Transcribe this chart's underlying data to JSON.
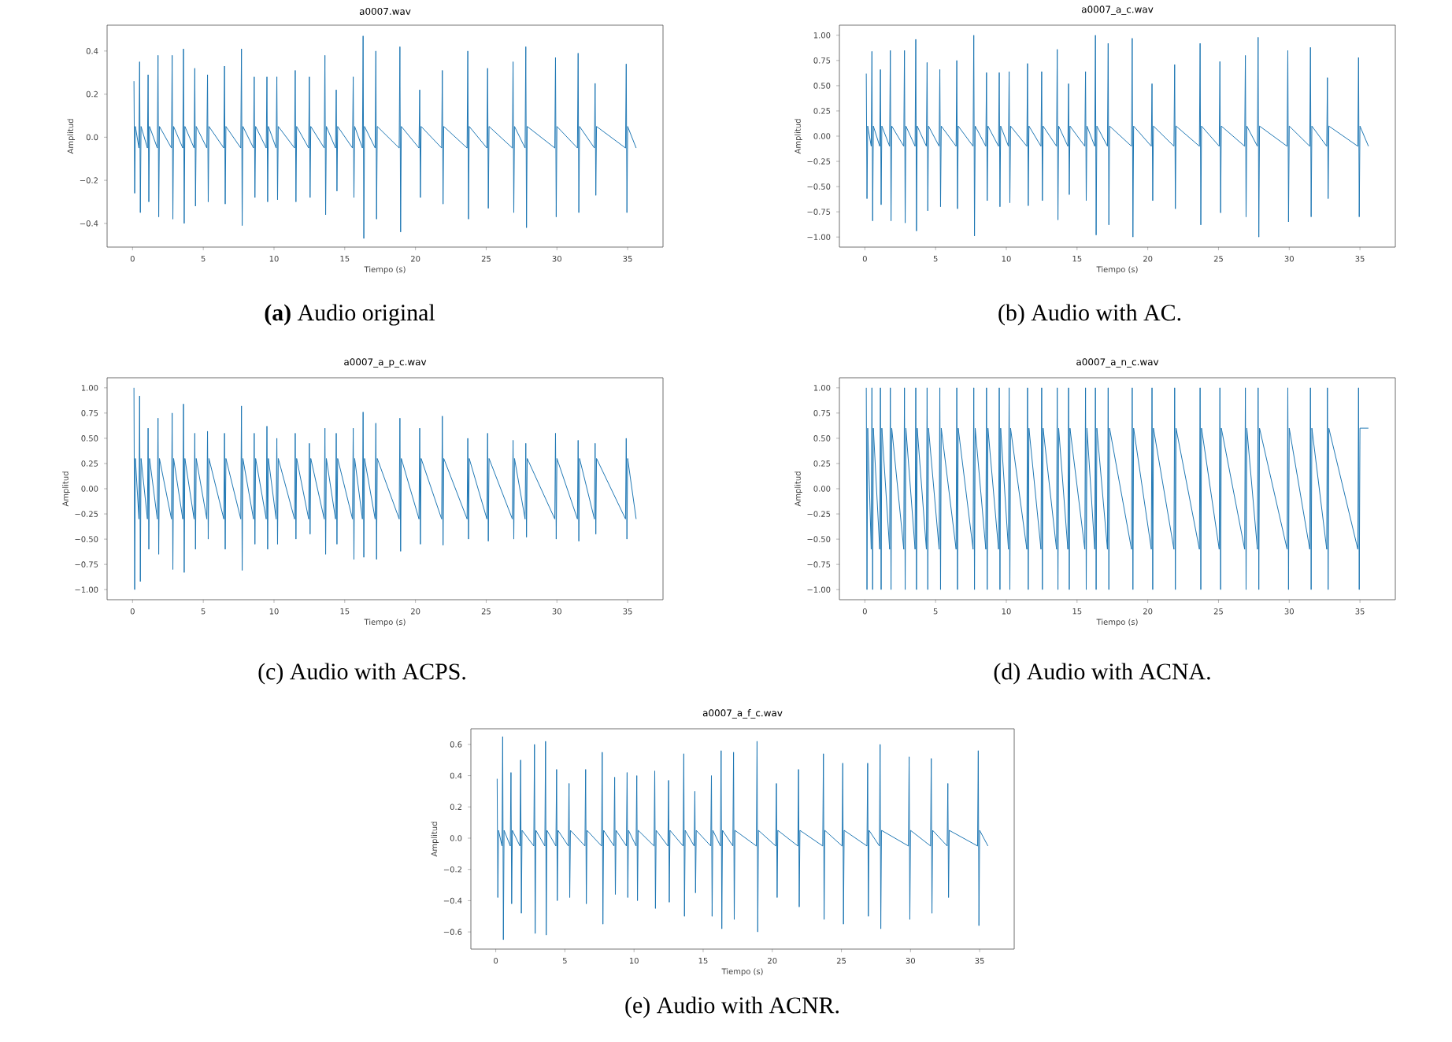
{
  "chart_data": [
    {
      "type": "line",
      "title": "a0007.wav",
      "xlabel": "Tiempo (s)",
      "ylabel": "Amplitud",
      "annotations": [
        "**(a)** Audio original"
      ],
      "xlim": [
        -1.8,
        37.5
      ],
      "ylim": [
        -0.51,
        0.52
      ],
      "xticks": [
        0,
        5,
        10,
        15,
        20,
        25,
        30,
        35
      ],
      "yticks": [
        {
          "value": -0.4,
          "label": "−0.4"
        },
        {
          "value": -0.2,
          "label": "−0.2"
        },
        {
          "value": 0,
          "label": "0.0"
        },
        {
          "value": 0.2,
          "label": "0.2"
        },
        {
          "value": 0.4,
          "label": "0.4"
        }
      ],
      "x": [
        0.1,
        0.15,
        0.2,
        0.45,
        0.5,
        0.55,
        0.6,
        1.05,
        1.1,
        1.15,
        1.2,
        1.75,
        1.8,
        1.85,
        1.9,
        2.75,
        2.8,
        2.85,
        2.9,
        3.55,
        3.6,
        3.65,
        3.7,
        4.35,
        4.4,
        4.45,
        4.5,
        5.25,
        5.3,
        5.35,
        5.4,
        6.45,
        6.5,
        6.55,
        6.6,
        7.65,
        7.7,
        7.75,
        7.8,
        8.55,
        8.6,
        8.65,
        8.7,
        9.45,
        9.5,
        9.55,
        9.6,
        10.15,
        10.2,
        10.25,
        10.3,
        11.45,
        11.5,
        11.55,
        11.6,
        12.45,
        12.5,
        12.55,
        12.6,
        13.55,
        13.6,
        13.65,
        13.7,
        14.35,
        14.4,
        14.45,
        14.5,
        15.55,
        15.6,
        15.65,
        15.7,
        16.25,
        16.3,
        16.35,
        16.4,
        17.15,
        17.2,
        17.25,
        17.3,
        18.85,
        18.9,
        18.95,
        19.0,
        20.25,
        20.3,
        20.35,
        20.4,
        21.85,
        21.9,
        21.95,
        22.0,
        23.65,
        23.7,
        23.75,
        23.8,
        25.05,
        25.1,
        25.15,
        25.2,
        26.85,
        26.9,
        26.95,
        27.0,
        27.75,
        27.8,
        27.85,
        27.9,
        29.85,
        29.9,
        29.95,
        30.0,
        31.45,
        31.5,
        31.55,
        31.6,
        32.65,
        32.7,
        32.75,
        32.8,
        34.85,
        34.9,
        34.95,
        35.0,
        35.6
      ],
      "series": [
        {
          "color": "#1f77b4",
          "values": [
            0.26,
            -0.26,
            0.05,
            -0.05,
            0.35,
            -0.35,
            0.05,
            -0.05,
            0.29,
            -0.3,
            0.05,
            -0.05,
            0.38,
            -0.37,
            0.05,
            -0.05,
            0.38,
            -0.38,
            0.05,
            -0.05,
            0.41,
            -0.4,
            0.05,
            -0.05,
            0.32,
            -0.32,
            0.05,
            -0.05,
            0.29,
            -0.3,
            0.05,
            -0.05,
            0.33,
            -0.31,
            0.05,
            -0.05,
            0.41,
            -0.41,
            0.05,
            -0.05,
            0.28,
            -0.28,
            0.05,
            -0.05,
            0.28,
            -0.3,
            0.05,
            -0.05,
            0.28,
            -0.29,
            0.05,
            -0.05,
            0.31,
            -0.3,
            0.05,
            -0.05,
            0.28,
            -0.28,
            0.05,
            -0.05,
            0.38,
            -0.36,
            0.05,
            -0.05,
            0.22,
            -0.25,
            0.05,
            -0.05,
            0.28,
            -0.28,
            0.05,
            -0.05,
            0.47,
            -0.47,
            0.05,
            -0.05,
            0.4,
            -0.38,
            0.05,
            -0.05,
            0.42,
            -0.44,
            0.05,
            -0.05,
            0.22,
            -0.28,
            0.05,
            -0.05,
            0.31,
            -0.31,
            0.05,
            -0.05,
            0.4,
            -0.38,
            0.05,
            -0.05,
            0.32,
            -0.33,
            0.05,
            -0.05,
            0.35,
            -0.35,
            0.05,
            -0.05,
            0.42,
            -0.42,
            0.05,
            -0.05,
            0.37,
            -0.37,
            0.05,
            -0.05,
            0.39,
            -0.35,
            0.05,
            -0.05,
            0.25,
            -0.27,
            0.05,
            -0.05,
            0.34,
            -0.35,
            0.05,
            -0.05
          ]
        }
      ]
    },
    {
      "type": "line",
      "title": "a0007_a_c.wav",
      "xlabel": "Tiempo (s)",
      "ylabel": "Amplitud",
      "annotations": [
        "(b) Audio with AC."
      ],
      "xlim": [
        -1.8,
        37.5
      ],
      "ylim": [
        -1.1,
        1.1
      ],
      "xticks": [
        0,
        5,
        10,
        15,
        20,
        25,
        30,
        35
      ],
      "yticks": [
        {
          "value": -1,
          "label": "−1.00"
        },
        {
          "value": -0.75,
          "label": "−0.75"
        },
        {
          "value": -0.5,
          "label": "−0.50"
        },
        {
          "value": -0.25,
          "label": "−0.25"
        },
        {
          "value": 0,
          "label": "0.00"
        },
        {
          "value": 0.25,
          "label": "0.25"
        },
        {
          "value": 0.5,
          "label": "0.50"
        },
        {
          "value": 0.75,
          "label": "0.75"
        },
        {
          "value": 1,
          "label": "1.00"
        }
      ],
      "x": [
        0.1,
        0.15,
        0.2,
        0.45,
        0.5,
        0.55,
        0.6,
        1.05,
        1.1,
        1.15,
        1.2,
        1.75,
        1.8,
        1.85,
        1.9,
        2.75,
        2.8,
        2.85,
        2.9,
        3.55,
        3.6,
        3.65,
        3.7,
        4.35,
        4.4,
        4.45,
        4.5,
        5.25,
        5.3,
        5.35,
        5.4,
        6.45,
        6.5,
        6.55,
        6.6,
        7.65,
        7.7,
        7.75,
        7.8,
        8.55,
        8.6,
        8.65,
        8.7,
        9.45,
        9.5,
        9.55,
        9.6,
        10.15,
        10.2,
        10.25,
        10.3,
        11.45,
        11.5,
        11.55,
        11.6,
        12.45,
        12.5,
        12.55,
        12.6,
        13.55,
        13.6,
        13.65,
        13.7,
        14.35,
        14.4,
        14.45,
        14.5,
        15.55,
        15.6,
        15.65,
        15.7,
        16.25,
        16.3,
        16.35,
        16.4,
        17.15,
        17.2,
        17.25,
        17.3,
        18.85,
        18.9,
        18.95,
        19.0,
        20.25,
        20.3,
        20.35,
        20.4,
        21.85,
        21.9,
        21.95,
        22.0,
        23.65,
        23.7,
        23.75,
        23.8,
        25.05,
        25.1,
        25.15,
        25.2,
        26.85,
        26.9,
        26.95,
        27.0,
        27.75,
        27.8,
        27.85,
        27.9,
        29.85,
        29.9,
        29.95,
        30.0,
        31.45,
        31.5,
        31.55,
        31.6,
        32.65,
        32.7,
        32.75,
        32.8,
        34.85,
        34.9,
        34.95,
        35.0,
        35.6
      ],
      "series": [
        {
          "color": "#1f77b4",
          "values": [
            0.62,
            -0.62,
            0.1,
            -0.1,
            0.84,
            -0.84,
            0.1,
            -0.1,
            0.66,
            -0.68,
            0.1,
            -0.1,
            0.85,
            -0.84,
            0.1,
            -0.1,
            0.85,
            -0.86,
            0.1,
            -0.1,
            0.96,
            -0.94,
            0.1,
            -0.1,
            0.73,
            -0.74,
            0.1,
            -0.1,
            0.66,
            -0.7,
            0.1,
            -0.1,
            0.75,
            -0.72,
            0.1,
            -0.1,
            1.0,
            -0.99,
            0.1,
            -0.1,
            0.63,
            -0.64,
            0.1,
            -0.1,
            0.63,
            -0.7,
            0.1,
            -0.1,
            0.64,
            -0.66,
            0.1,
            -0.1,
            0.72,
            -0.69,
            0.1,
            -0.1,
            0.64,
            -0.64,
            0.1,
            -0.1,
            0.86,
            -0.83,
            0.1,
            -0.1,
            0.52,
            -0.58,
            0.1,
            -0.1,
            0.64,
            -0.64,
            0.1,
            -0.1,
            1.0,
            -0.98,
            0.1,
            -0.1,
            0.92,
            -0.88,
            0.1,
            -0.1,
            0.97,
            -1.0,
            0.1,
            -0.1,
            0.52,
            -0.64,
            0.1,
            -0.1,
            0.71,
            -0.72,
            0.1,
            -0.1,
            0.92,
            -0.88,
            0.1,
            -0.1,
            0.74,
            -0.76,
            0.1,
            -0.1,
            0.8,
            -0.8,
            0.1,
            -0.1,
            0.98,
            -1.0,
            0.1,
            -0.1,
            0.85,
            -0.85,
            0.1,
            -0.1,
            0.88,
            -0.8,
            0.1,
            -0.1,
            0.58,
            -0.62,
            0.1,
            -0.1,
            0.78,
            -0.8,
            0.1,
            -0.1
          ]
        }
      ]
    },
    {
      "type": "line",
      "title": "a0007_a_p_c.wav",
      "xlabel": "Tiempo (s)",
      "ylabel": "Amplitud",
      "annotations": [
        "(c) Audio with ACPS."
      ],
      "xlim": [
        -1.8,
        37.5
      ],
      "ylim": [
        -1.1,
        1.1
      ],
      "xticks": [
        0,
        5,
        10,
        15,
        20,
        25,
        30,
        35
      ],
      "yticks": [
        {
          "value": -1,
          "label": "−1.00"
        },
        {
          "value": -0.75,
          "label": "−0.75"
        },
        {
          "value": -0.5,
          "label": "−0.50"
        },
        {
          "value": -0.25,
          "label": "−0.25"
        },
        {
          "value": 0,
          "label": "0.00"
        },
        {
          "value": 0.25,
          "label": "0.25"
        },
        {
          "value": 0.5,
          "label": "0.50"
        },
        {
          "value": 0.75,
          "label": "0.75"
        },
        {
          "value": 1,
          "label": "1.00"
        }
      ],
      "x": [
        0.1,
        0.15,
        0.2,
        0.45,
        0.5,
        0.55,
        0.6,
        1.05,
        1.1,
        1.15,
        1.2,
        1.75,
        1.8,
        1.85,
        1.9,
        2.75,
        2.8,
        2.85,
        2.9,
        3.55,
        3.6,
        3.65,
        3.7,
        4.35,
        4.4,
        4.45,
        4.5,
        5.25,
        5.3,
        5.35,
        5.4,
        6.45,
        6.5,
        6.55,
        6.6,
        7.65,
        7.7,
        7.75,
        7.8,
        8.55,
        8.6,
        8.65,
        8.7,
        9.45,
        9.5,
        9.55,
        9.6,
        10.15,
        10.2,
        10.25,
        10.3,
        11.45,
        11.5,
        11.55,
        11.6,
        12.45,
        12.5,
        12.55,
        12.6,
        13.55,
        13.6,
        13.65,
        13.7,
        14.35,
        14.4,
        14.45,
        14.5,
        15.55,
        15.6,
        15.65,
        15.7,
        16.25,
        16.3,
        16.35,
        16.4,
        17.15,
        17.2,
        17.25,
        17.3,
        18.85,
        18.9,
        18.95,
        19.0,
        20.25,
        20.3,
        20.35,
        20.4,
        21.85,
        21.9,
        21.95,
        22.0,
        23.65,
        23.7,
        23.75,
        23.8,
        25.05,
        25.1,
        25.15,
        25.2,
        26.85,
        26.9,
        26.95,
        27.0,
        27.75,
        27.8,
        27.85,
        27.9,
        29.85,
        29.9,
        29.95,
        30.0,
        31.45,
        31.5,
        31.55,
        31.6,
        32.65,
        32.7,
        32.75,
        32.8,
        34.85,
        34.9,
        34.95,
        35.0,
        35.6
      ],
      "series": [
        {
          "color": "#1f77b4",
          "values": [
            1.0,
            -1.0,
            0.3,
            -0.3,
            0.92,
            -0.92,
            0.3,
            -0.3,
            0.6,
            -0.6,
            0.3,
            -0.3,
            0.7,
            -0.65,
            0.3,
            -0.3,
            0.75,
            -0.8,
            0.3,
            -0.3,
            0.84,
            -0.83,
            0.3,
            -0.3,
            0.55,
            -0.6,
            0.3,
            -0.3,
            0.57,
            -0.5,
            0.3,
            -0.3,
            0.55,
            -0.6,
            0.3,
            -0.3,
            0.82,
            -0.81,
            0.3,
            -0.3,
            0.55,
            -0.55,
            0.3,
            -0.3,
            0.62,
            -0.6,
            0.3,
            -0.3,
            0.5,
            -0.55,
            0.3,
            -0.3,
            0.55,
            -0.5,
            0.3,
            -0.3,
            0.45,
            -0.45,
            0.3,
            -0.3,
            0.6,
            -0.65,
            0.3,
            -0.3,
            0.55,
            -0.55,
            0.3,
            -0.3,
            0.6,
            -0.7,
            0.3,
            -0.3,
            0.76,
            -0.68,
            0.3,
            -0.3,
            0.65,
            -0.7,
            0.3,
            -0.3,
            0.7,
            -0.62,
            0.3,
            -0.3,
            0.6,
            -0.55,
            0.3,
            -0.3,
            0.72,
            -0.56,
            0.3,
            -0.3,
            0.5,
            -0.5,
            0.3,
            -0.3,
            0.55,
            -0.52,
            0.3,
            -0.3,
            0.48,
            -0.5,
            0.3,
            -0.3,
            0.45,
            -0.48,
            0.3,
            -0.3,
            0.55,
            -0.5,
            0.3,
            -0.3,
            0.48,
            -0.52,
            0.3,
            -0.3,
            0.45,
            -0.45,
            0.3,
            -0.3,
            0.5,
            -0.5,
            0.3,
            -0.3
          ]
        }
      ]
    },
    {
      "type": "line",
      "title": "a0007_a_n_c.wav",
      "xlabel": "Tiempo (s)",
      "ylabel": "Amplitud",
      "annotations": [
        "(d) Audio with ACNA."
      ],
      "xlim": [
        -1.8,
        37.5
      ],
      "ylim": [
        -1.1,
        1.1
      ],
      "xticks": [
        0,
        5,
        10,
        15,
        20,
        25,
        30,
        35
      ],
      "yticks": [
        {
          "value": -1,
          "label": "−1.00"
        },
        {
          "value": -0.75,
          "label": "−0.75"
        },
        {
          "value": -0.5,
          "label": "−0.50"
        },
        {
          "value": -0.25,
          "label": "−0.25"
        },
        {
          "value": 0,
          "label": "0.00"
        },
        {
          "value": 0.25,
          "label": "0.25"
        },
        {
          "value": 0.5,
          "label": "0.50"
        },
        {
          "value": 0.75,
          "label": "0.75"
        },
        {
          "value": 1,
          "label": "1.00"
        }
      ],
      "x": [
        0.1,
        0.15,
        0.2,
        0.45,
        0.5,
        0.55,
        0.6,
        1.05,
        1.1,
        1.15,
        1.2,
        1.75,
        1.8,
        1.85,
        1.9,
        2.75,
        2.8,
        2.85,
        2.9,
        3.55,
        3.6,
        3.65,
        3.7,
        4.35,
        4.4,
        4.45,
        4.5,
        5.25,
        5.3,
        5.35,
        5.4,
        6.45,
        6.5,
        6.55,
        6.6,
        7.65,
        7.7,
        7.75,
        7.8,
        8.55,
        8.6,
        8.65,
        8.7,
        9.45,
        9.5,
        9.55,
        9.6,
        10.15,
        10.2,
        10.25,
        10.3,
        11.45,
        11.5,
        11.55,
        11.6,
        12.45,
        12.5,
        12.55,
        12.6,
        13.55,
        13.6,
        13.65,
        13.7,
        14.35,
        14.4,
        14.45,
        14.5,
        15.55,
        15.6,
        15.65,
        15.7,
        16.25,
        16.3,
        16.35,
        16.4,
        17.15,
        17.2,
        17.25,
        17.3,
        18.85,
        18.9,
        18.95,
        19.0,
        20.25,
        20.3,
        20.35,
        20.4,
        21.85,
        21.9,
        21.95,
        22.0,
        23.65,
        23.7,
        23.75,
        23.8,
        25.05,
        25.1,
        25.15,
        25.2,
        26.85,
        26.9,
        26.95,
        27.0,
        27.75,
        27.8,
        27.85,
        27.9,
        29.85,
        29.9,
        29.95,
        30.0,
        31.45,
        31.5,
        31.55,
        31.6,
        32.65,
        32.7,
        32.75,
        32.8,
        34.85,
        34.9,
        34.95,
        35.0,
        35.6
      ],
      "series": [
        {
          "color": "#1f77b4",
          "values": [
            1.0,
            -1.0,
            0.6,
            -0.6,
            1.0,
            -1.0,
            0.6,
            -0.6,
            1.0,
            -1.0,
            0.6,
            -0.6,
            1.0,
            -1.0,
            0.6,
            -0.6,
            1.0,
            -1.0,
            0.6,
            -0.6,
            1.0,
            -1.0,
            0.6,
            -0.6,
            1.0,
            -1.0,
            0.6,
            -0.6,
            1.0,
            -1.0,
            0.6,
            -0.6,
            1.0,
            -1.0,
            0.6,
            -0.6,
            1.0,
            -1.0,
            0.6,
            -0.6,
            1.0,
            -1.0,
            0.6,
            -0.6,
            1.0,
            -1.0,
            0.6,
            -0.6,
            1.0,
            -1.0,
            0.6,
            -0.6,
            1.0,
            -1.0,
            0.6,
            -0.6,
            1.0,
            -1.0,
            0.6,
            -0.6,
            1.0,
            -1.0,
            0.6,
            -0.6,
            1.0,
            -1.0,
            0.6,
            -0.6,
            1.0,
            -1.0,
            0.6,
            -0.6,
            1.0,
            -1.0,
            0.6,
            -0.6,
            1.0,
            -1.0,
            0.6,
            -0.6,
            1.0,
            -1.0,
            0.6,
            -0.6,
            1.0,
            -1.0,
            0.6,
            -0.6,
            1.0,
            -1.0,
            0.6,
            -0.6,
            1.0,
            -1.0,
            0.6,
            -0.6,
            1.0,
            -1.0,
            0.6,
            -0.6,
            1.0,
            -1.0,
            0.6,
            -0.6,
            1.0,
            -1.0,
            0.6,
            -0.6,
            1.0,
            -1.0,
            0.6,
            -0.6,
            1.0,
            -1.0,
            0.6,
            -0.6,
            1.0,
            -1.0,
            0.6,
            -0.6,
            1.0,
            -1.0,
            0.6,
            0.6
          ]
        }
      ]
    },
    {
      "type": "line",
      "title": "a0007_a_f_c.wav",
      "xlabel": "Tiempo (s)",
      "ylabel": "Amplitud",
      "annotations": [
        "(e) Audio with ACNR."
      ],
      "xlim": [
        -1.8,
        37.5
      ],
      "ylim": [
        -0.71,
        0.7
      ],
      "xticks": [
        0,
        5,
        10,
        15,
        20,
        25,
        30,
        35
      ],
      "yticks": [
        {
          "value": -0.6,
          "label": "−0.6"
        },
        {
          "value": -0.4,
          "label": "−0.4"
        },
        {
          "value": -0.2,
          "label": "−0.2"
        },
        {
          "value": 0,
          "label": "0.0"
        },
        {
          "value": 0.2,
          "label": "0.2"
        },
        {
          "value": 0.4,
          "label": "0.4"
        },
        {
          "value": 0.6,
          "label": "0.6"
        }
      ],
      "x": [
        0.1,
        0.15,
        0.2,
        0.45,
        0.5,
        0.55,
        0.6,
        1.05,
        1.1,
        1.15,
        1.2,
        1.75,
        1.8,
        1.85,
        1.9,
        2.75,
        2.8,
        2.85,
        2.9,
        3.55,
        3.6,
        3.65,
        3.7,
        4.35,
        4.4,
        4.45,
        4.5,
        5.25,
        5.3,
        5.35,
        5.4,
        6.45,
        6.5,
        6.55,
        6.6,
        7.65,
        7.7,
        7.75,
        7.8,
        8.55,
        8.6,
        8.65,
        8.7,
        9.45,
        9.5,
        9.55,
        9.6,
        10.15,
        10.2,
        10.25,
        10.3,
        11.45,
        11.5,
        11.55,
        11.6,
        12.45,
        12.5,
        12.55,
        12.6,
        13.55,
        13.6,
        13.65,
        13.7,
        14.35,
        14.4,
        14.45,
        14.5,
        15.55,
        15.6,
        15.65,
        15.7,
        16.25,
        16.3,
        16.35,
        16.4,
        17.15,
        17.2,
        17.25,
        17.3,
        18.85,
        18.9,
        18.95,
        19.0,
        20.25,
        20.3,
        20.35,
        20.4,
        21.85,
        21.9,
        21.95,
        22.0,
        23.65,
        23.7,
        23.75,
        23.8,
        25.05,
        25.1,
        25.15,
        25.2,
        26.85,
        26.9,
        26.95,
        27.0,
        27.75,
        27.8,
        27.85,
        27.9,
        29.85,
        29.9,
        29.95,
        30.0,
        31.45,
        31.5,
        31.55,
        31.6,
        32.65,
        32.7,
        32.75,
        32.8,
        34.85,
        34.9,
        34.95,
        35.0,
        35.6
      ],
      "series": [
        {
          "color": "#1f77b4",
          "values": [
            0.38,
            -0.38,
            0.05,
            -0.05,
            0.65,
            -0.65,
            0.05,
            -0.05,
            0.42,
            -0.42,
            0.05,
            -0.05,
            0.5,
            -0.48,
            0.05,
            -0.05,
            0.6,
            -0.61,
            0.05,
            -0.05,
            0.62,
            -0.62,
            0.05,
            -0.05,
            0.44,
            -0.4,
            0.05,
            -0.05,
            0.35,
            -0.38,
            0.05,
            -0.05,
            0.44,
            -0.42,
            0.05,
            -0.05,
            0.55,
            -0.55,
            0.05,
            -0.05,
            0.39,
            -0.36,
            0.05,
            -0.05,
            0.42,
            -0.38,
            0.05,
            -0.05,
            0.4,
            -0.4,
            0.05,
            -0.05,
            0.43,
            -0.45,
            0.05,
            -0.05,
            0.37,
            -0.41,
            0.05,
            -0.05,
            0.54,
            -0.5,
            0.05,
            -0.05,
            0.3,
            -0.35,
            0.05,
            -0.05,
            0.4,
            -0.5,
            0.05,
            -0.05,
            0.56,
            -0.58,
            0.05,
            -0.05,
            0.55,
            -0.52,
            0.05,
            -0.05,
            0.62,
            -0.6,
            0.05,
            -0.05,
            0.35,
            -0.38,
            0.05,
            -0.05,
            0.44,
            -0.44,
            0.05,
            -0.05,
            0.54,
            -0.52,
            0.05,
            -0.05,
            0.48,
            -0.55,
            0.05,
            -0.05,
            0.48,
            -0.5,
            0.05,
            -0.05,
            0.6,
            -0.58,
            0.05,
            -0.05,
            0.52,
            -0.52,
            0.05,
            -0.05,
            0.51,
            -0.48,
            0.05,
            -0.05,
            0.35,
            -0.38,
            0.05,
            -0.05,
            0.56,
            -0.56,
            0.05,
            -0.05
          ]
        }
      ]
    }
  ]
}
